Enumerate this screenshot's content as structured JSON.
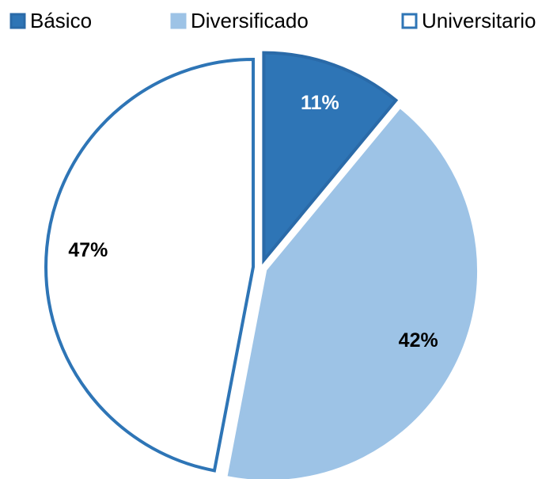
{
  "chart_data": {
    "type": "pie",
    "categories": [
      "Básico",
      "Diversificado",
      "Universitario"
    ],
    "values": [
      11,
      42,
      47
    ],
    "value_labels": [
      "11%",
      "42%",
      "47%"
    ],
    "colors": [
      "#2e75b6",
      "#9dc3e6",
      "#ffffff"
    ],
    "legend": "top"
  }
}
